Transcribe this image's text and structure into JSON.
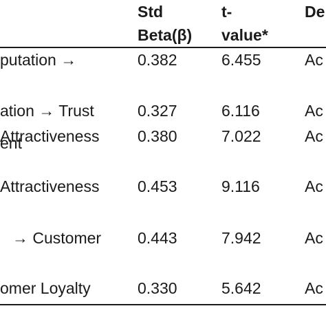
{
  "table": {
    "headers": {
      "std_beta": {
        "line1": "Std",
        "line2": "Beta(β)"
      },
      "t_value": {
        "line1": "t-",
        "line2": "value*"
      },
      "decision": {
        "line1": "De"
      }
    },
    "rows": [
      {
        "hypothesis_lines": [
          "putation      →"
        ],
        "std_beta": "0.382",
        "t_value": "6.455",
        "decision": "Ac"
      },
      {
        "hypothesis_lines": [
          "ation → Trust"
        ],
        "std_beta": "0.327",
        "t_value": "6.116",
        "decision": "Ac"
      },
      {
        "hypothesis_lines": [
          "Attractiveness",
          "ent"
        ],
        "std_beta": "0.380",
        "t_value": "7.022",
        "decision": "Ac"
      },
      {
        "hypothesis_lines": [
          "Attractiveness"
        ],
        "std_beta": "0.453",
        "t_value": "9.116",
        "decision": "Ac"
      },
      {
        "hypothesis_lines": [
          "→ Customer"
        ],
        "std_beta": "0.443",
        "t_value": "7.942",
        "decision": "Ac"
      },
      {
        "hypothesis_lines": [
          "omer Loyalty"
        ],
        "std_beta": "0.330",
        "t_value": "5.642",
        "decision": "Ac"
      }
    ]
  }
}
